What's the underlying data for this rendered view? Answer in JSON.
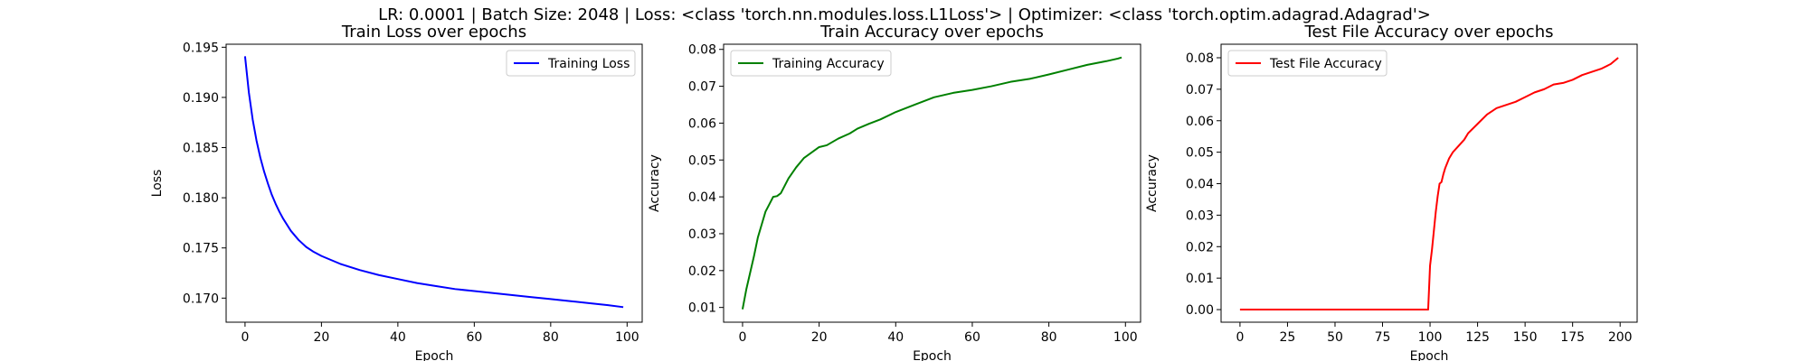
{
  "figure": {
    "suptitle": "LR: 0.0001 | Batch Size: 2048 | Loss: <class 'torch.nn.modules.loss.L1Loss'> | Optimizer: <class 'torch.optim.adagrad.Adagrad'>"
  },
  "chart_data": [
    {
      "type": "line",
      "title": "Train Loss over epochs",
      "xlabel": "Epoch",
      "ylabel": "Loss",
      "xlim": [
        -4.95,
        103.95
      ],
      "ylim": [
        0.1676,
        0.1953
      ],
      "xticks": [
        0,
        20,
        40,
        60,
        80,
        100
      ],
      "yticks": [
        0.17,
        0.175,
        0.18,
        0.185,
        0.19,
        0.195
      ],
      "x_tick_labels": [
        "0",
        "20",
        "40",
        "60",
        "80",
        "100"
      ],
      "y_tick_labels": [
        "0.170",
        "0.175",
        "0.180",
        "0.185",
        "0.190",
        "0.195"
      ],
      "legend_position": "upper-right",
      "grid": false,
      "series": [
        {
          "name": "Training Loss",
          "color": "#0000ff",
          "x": [
            0,
            1,
            2,
            3,
            4,
            5,
            6,
            7,
            8,
            9,
            10,
            12,
            14,
            16,
            18,
            20,
            25,
            30,
            35,
            40,
            45,
            50,
            55,
            60,
            65,
            70,
            75,
            80,
            85,
            90,
            95,
            99
          ],
          "y": [
            0.1941,
            0.1905,
            0.1878,
            0.1857,
            0.184,
            0.1826,
            0.1814,
            0.1803,
            0.1794,
            0.1786,
            0.1779,
            0.1767,
            0.1758,
            0.1751,
            0.1746,
            0.1742,
            0.1734,
            0.1728,
            0.1723,
            0.1719,
            0.1715,
            0.1712,
            0.1709,
            0.1707,
            0.1705,
            0.1703,
            0.1701,
            0.1699,
            0.1697,
            0.1695,
            0.1693,
            0.1691
          ]
        }
      ]
    },
    {
      "type": "line",
      "title": "Train Accuracy over epochs",
      "xlabel": "Epoch",
      "ylabel": "Accuracy",
      "xlim": [
        -4.95,
        103.95
      ],
      "ylim": [
        0.006,
        0.0814
      ],
      "xticks": [
        0,
        20,
        40,
        60,
        80,
        100
      ],
      "yticks": [
        0.01,
        0.02,
        0.03,
        0.04,
        0.05,
        0.06,
        0.07,
        0.08
      ],
      "x_tick_labels": [
        "0",
        "20",
        "40",
        "60",
        "80",
        "100"
      ],
      "y_tick_labels": [
        "0.01",
        "0.02",
        "0.03",
        "0.04",
        "0.05",
        "0.06",
        "0.07",
        "0.08"
      ],
      "legend_position": "upper-left",
      "grid": false,
      "series": [
        {
          "name": "Training Accuracy",
          "color": "#008000",
          "x": [
            0,
            1,
            2,
            3,
            4,
            5,
            6,
            7,
            8,
            9,
            10,
            12,
            14,
            16,
            18,
            20,
            22,
            25,
            28,
            30,
            33,
            36,
            40,
            45,
            50,
            55,
            60,
            65,
            70,
            75,
            80,
            85,
            90,
            95,
            98,
            99
          ],
          "y": [
            0.0095,
            0.015,
            0.0195,
            0.024,
            0.029,
            0.0325,
            0.036,
            0.038,
            0.04,
            0.0402,
            0.041,
            0.045,
            0.048,
            0.0505,
            0.052,
            0.0535,
            0.054,
            0.0558,
            0.0572,
            0.0585,
            0.0598,
            0.061,
            0.063,
            0.065,
            0.067,
            0.0682,
            0.069,
            0.07,
            0.0712,
            0.072,
            0.0732,
            0.0745,
            0.0758,
            0.0768,
            0.0775,
            0.0778
          ]
        }
      ]
    },
    {
      "type": "line",
      "title": "Test File Accuracy over epochs",
      "xlabel": "Epoch",
      "ylabel": "Accuracy",
      "xlim": [
        -9.95,
        208.95
      ],
      "ylim": [
        -0.004,
        0.0843
      ],
      "xticks": [
        0,
        25,
        50,
        75,
        100,
        125,
        150,
        175,
        200
      ],
      "yticks": [
        0.0,
        0.01,
        0.02,
        0.03,
        0.04,
        0.05,
        0.06,
        0.07,
        0.08
      ],
      "x_tick_labels": [
        "0",
        "25",
        "50",
        "75",
        "100",
        "125",
        "150",
        "175",
        "200"
      ],
      "y_tick_labels": [
        "0.00",
        "0.01",
        "0.02",
        "0.03",
        "0.04",
        "0.05",
        "0.06",
        "0.07",
        "0.08"
      ],
      "legend_position": "upper-left",
      "grid": false,
      "series": [
        {
          "name": "Test File Accuracy",
          "color": "#ff0000",
          "x": [
            0,
            99,
            100,
            101,
            102,
            103,
            104,
            105,
            106,
            107,
            108,
            110,
            112,
            115,
            118,
            120,
            125,
            130,
            135,
            140,
            145,
            150,
            155,
            160,
            165,
            170,
            175,
            180,
            185,
            190,
            195,
            199
          ],
          "y": [
            0.0,
            0.0,
            0.014,
            0.019,
            0.025,
            0.031,
            0.036,
            0.04,
            0.0405,
            0.043,
            0.045,
            0.048,
            0.05,
            0.052,
            0.054,
            0.056,
            0.059,
            0.062,
            0.064,
            0.065,
            0.066,
            0.0675,
            0.069,
            0.07,
            0.0715,
            0.072,
            0.073,
            0.0745,
            0.0755,
            0.0765,
            0.078,
            0.08
          ]
        }
      ]
    }
  ]
}
